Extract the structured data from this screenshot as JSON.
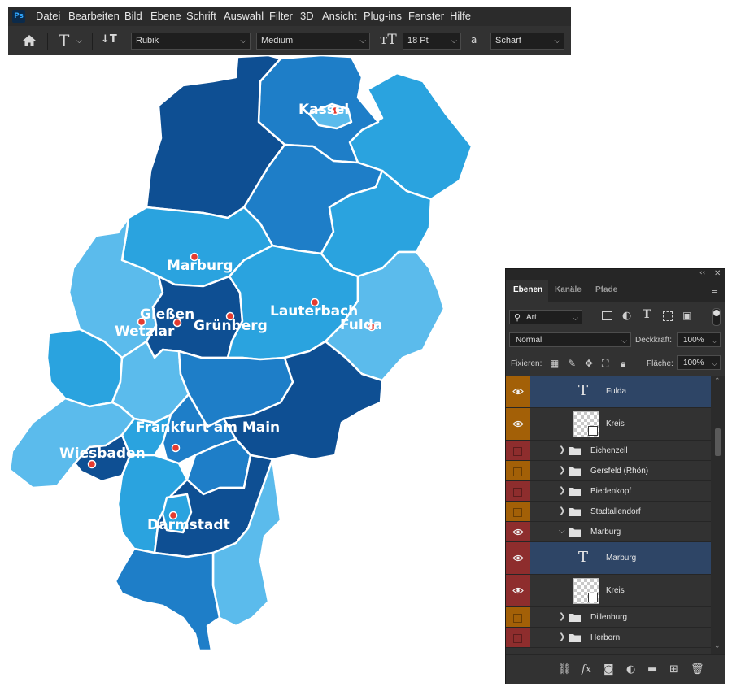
{
  "app": {
    "logo": "Ps",
    "menu": [
      "Datei",
      "Bearbeiten",
      "Bild",
      "Ebene",
      "Schrift",
      "Auswahl",
      "Filter",
      "3D",
      "Ansicht",
      "Plug-ins",
      "Fenster",
      "Hilfe"
    ]
  },
  "options_bar": {
    "font_family": "Rubik",
    "font_style": "Medium",
    "font_size": "18 Pt",
    "antialias_icon_text": "a",
    "antialias": "Scharf"
  },
  "map": {
    "colors": {
      "dark": "#0e4f93",
      "mid": "#1e7ec8",
      "light": "#2aa3df",
      "pale": "#5bbbec",
      "dot": "#e53b2f",
      "border": "#ffffff"
    },
    "cities": [
      "Kassel",
      "Marburg",
      "Gießen",
      "Wetzlar",
      "Grünberg",
      "Lauterbach",
      "Fulda",
      "Frankfurt am Main",
      "Wiesbaden",
      "Darmstadt"
    ]
  },
  "layers_panel": {
    "tabs": [
      "Ebenen",
      "Kanäle",
      "Pfade"
    ],
    "filter_kind": "Art",
    "blend_mode": "Normal",
    "opacity_label": "Deckkraft:",
    "opacity": "100%",
    "lock_label": "Fixieren:",
    "fill_label": "Fläche:",
    "fill": "100%",
    "layers": [
      {
        "name": "Fulda",
        "kind": "text",
        "visible": true,
        "color": "#a36007",
        "selected": true
      },
      {
        "name": "Kreis",
        "kind": "smart",
        "visible": true,
        "color": "#a36007",
        "selected": false
      },
      {
        "name": "Eichenzell",
        "kind": "group",
        "visible": false,
        "color": "#8e2d2d",
        "selected": false
      },
      {
        "name": "Gersfeld (Rhön)",
        "kind": "group",
        "visible": false,
        "color": "#a36007",
        "selected": false
      },
      {
        "name": "Biedenkopf",
        "kind": "group",
        "visible": false,
        "color": "#8e2d2d",
        "selected": false
      },
      {
        "name": "Stadtallendorf",
        "kind": "group",
        "visible": false,
        "color": "#a36007",
        "selected": false
      },
      {
        "name": "Marburg",
        "kind": "group-open",
        "visible": true,
        "color": "#8e2d2d",
        "selected": false
      },
      {
        "name": "Marburg",
        "kind": "text",
        "visible": true,
        "color": "#8e2d2d",
        "selected": true
      },
      {
        "name": "Kreis",
        "kind": "smart",
        "visible": true,
        "color": "#8e2d2d",
        "selected": false
      },
      {
        "name": "Dillenburg",
        "kind": "group",
        "visible": false,
        "color": "#a36007",
        "selected": false
      },
      {
        "name": "Herborn",
        "kind": "group",
        "visible": false,
        "color": "#8e2d2d",
        "selected": false
      }
    ]
  }
}
